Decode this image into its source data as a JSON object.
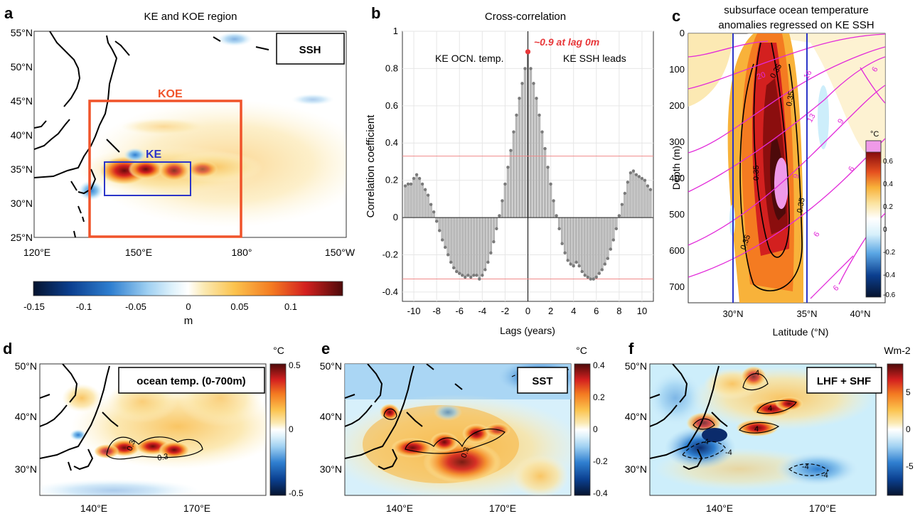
{
  "panel_a": {
    "letter": "a",
    "title": "KE and KOE region",
    "badge": "SSH",
    "koe_label": "KOE",
    "ke_label": "KE",
    "lat_ticks": [
      "55°N",
      "50°N",
      "45°N",
      "40°N",
      "35°N",
      "30°N",
      "25°N"
    ],
    "lon_ticks": [
      "120°E",
      "150°E",
      "180°",
      "150°W"
    ],
    "colorbar_ticks": [
      "-0.15",
      "-0.1",
      "-0.05",
      "0",
      "0.05",
      "0.1"
    ],
    "colorbar_unit": "m"
  },
  "panel_b": {
    "letter": "b",
    "title": "Cross-correlation",
    "annotation": "~0.9 at lag 0m",
    "left_note": "KE OCN. temp.",
    "right_note": "KE SSH leads",
    "ylabel": "Correlation coefficient",
    "xlabel": "Lags (years)",
    "x_ticks": [
      "-10",
      "-8",
      "-6",
      "-4",
      "-2",
      "0",
      "2",
      "4",
      "6",
      "8",
      "10"
    ],
    "y_ticks": [
      "1",
      "0.8",
      "0.6",
      "0.4",
      "0.2",
      "0",
      "-0.2",
      "-0.4"
    ]
  },
  "panel_c": {
    "letter": "c",
    "title_line1": "subsurface ocean temperature",
    "title_line2": "anomalies regressed on KE SSH",
    "ylabel": "Depth (m)",
    "xlabel": "Latitude (°N)",
    "depth_ticks": [
      "0",
      "100",
      "200",
      "300",
      "400",
      "500",
      "600",
      "700"
    ],
    "lat_ticks": [
      "30°N",
      "35°N",
      "40°N"
    ],
    "colorbar_unit": "°C",
    "colorbar_ticks": [
      "0.6",
      "0.4",
      "0.2",
      "0",
      "-0.2",
      "-0.4",
      "-0.6"
    ],
    "contour_labels": [
      "0.35",
      "0.35",
      "0.35",
      "0.35",
      "0.35",
      "20",
      "16",
      "13",
      "9",
      "9",
      "6",
      "6",
      "6",
      "6"
    ]
  },
  "panel_d": {
    "letter": "d",
    "badge": "ocean temp. (0-700m)",
    "unit": "°C",
    "colorbar_ticks": [
      "0.5",
      "0",
      "-0.5"
    ],
    "lat_ticks": [
      "50°N",
      "40°N",
      "30°N"
    ],
    "lon_ticks": [
      "140°E",
      "170°E"
    ],
    "contour_labels": [
      "0.3",
      "0.3"
    ]
  },
  "panel_e": {
    "letter": "e",
    "badge": "SST",
    "unit": "°C",
    "colorbar_ticks": [
      "0.4",
      "0.2",
      "0",
      "-0.2",
      "-0.4"
    ],
    "lat_ticks": [
      "50°N",
      "40°N",
      "30°N"
    ],
    "lon_ticks": [
      "140°E",
      "170°E"
    ],
    "contour_labels": [
      "0.3"
    ]
  },
  "panel_f": {
    "letter": "f",
    "badge": "LHF + SHF",
    "unit": "Wm-2",
    "colorbar_ticks": [
      "5",
      "0",
      "-5"
    ],
    "lat_ticks": [
      "50°N",
      "40°N",
      "30°N"
    ],
    "lon_ticks": [
      "140°E",
      "170°E"
    ],
    "contour_labels": [
      "4",
      "4",
      "4",
      "-4",
      "-4",
      "-4",
      "-4"
    ]
  },
  "chart_data": {
    "type": "bar",
    "x": [
      -10.75,
      -10.5,
      -10.25,
      -10,
      -9.75,
      -9.5,
      -9.25,
      -9,
      -8.75,
      -8.5,
      -8.25,
      -8,
      -7.75,
      -7.5,
      -7.25,
      -7,
      -6.75,
      -6.5,
      -6.25,
      -6,
      -5.75,
      -5.5,
      -5.25,
      -5,
      -4.75,
      -4.5,
      -4.25,
      -4,
      -3.75,
      -3.5,
      -3.25,
      -3,
      -2.75,
      -2.5,
      -2.25,
      -2,
      -1.75,
      -1.5,
      -1.25,
      -1,
      -0.75,
      -0.5,
      -0.25,
      0,
      0.25,
      0.5,
      0.75,
      1,
      1.25,
      1.5,
      1.75,
      2,
      2.25,
      2.5,
      2.75,
      3,
      3.25,
      3.5,
      3.75,
      4,
      4.25,
      4.5,
      4.75,
      5,
      5.25,
      5.5,
      5.75,
      6,
      6.25,
      6.5,
      6.75,
      7,
      7.25,
      7.5,
      7.75,
      8,
      8.25,
      8.5,
      8.75,
      9,
      9.25,
      9.5,
      9.75,
      10,
      10.25,
      10.5,
      10.75
    ],
    "values": [
      0.17,
      0.18,
      0.18,
      0.21,
      0.23,
      0.21,
      0.18,
      0.15,
      0.12,
      0.07,
      0.03,
      -0.02,
      -0.07,
      -0.12,
      -0.16,
      -0.2,
      -0.24,
      -0.27,
      -0.29,
      -0.3,
      -0.31,
      -0.32,
      -0.31,
      -0.32,
      -0.31,
      -0.31,
      -0.33,
      -0.31,
      -0.28,
      -0.24,
      -0.19,
      -0.13,
      -0.06,
      0.01,
      0.09,
      0.18,
      0.27,
      0.36,
      0.46,
      0.55,
      0.64,
      0.72,
      0.8,
      0.89,
      0.8,
      0.72,
      0.64,
      0.55,
      0.46,
      0.37,
      0.27,
      0.18,
      0.09,
      0.01,
      -0.06,
      -0.14,
      -0.19,
      -0.23,
      -0.25,
      -0.26,
      -0.24,
      -0.26,
      -0.29,
      -0.31,
      -0.32,
      -0.33,
      -0.33,
      -0.32,
      -0.3,
      -0.28,
      -0.25,
      -0.22,
      -0.17,
      -0.12,
      -0.06,
      0.01,
      0.07,
      0.13,
      0.19,
      0.24,
      0.25,
      0.23,
      0.22,
      0.21,
      0.2,
      0.17,
      0.15
    ],
    "title": "Cross-correlation",
    "xlabel": "Lags (years)",
    "ylabel": "Correlation coefficient",
    "xlim": [
      -11,
      11
    ],
    "ylim": [
      -0.45,
      1
    ],
    "significance": [
      0.33,
      -0.33
    ],
    "grid": true
  }
}
